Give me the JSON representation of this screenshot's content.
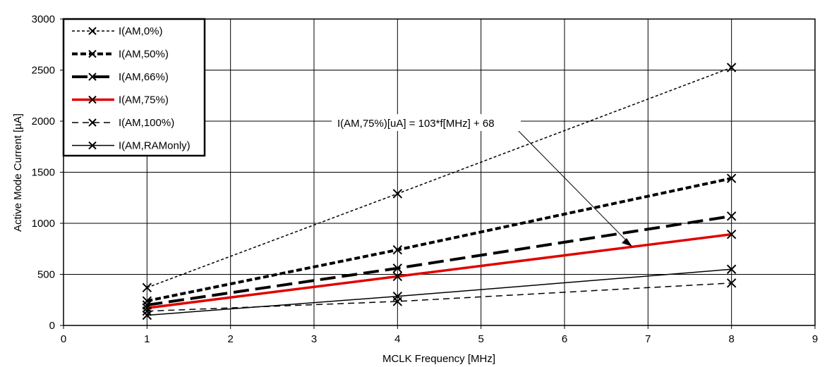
{
  "chart_data": {
    "type": "line",
    "title": "",
    "xlabel": "MCLK Frequency [MHz]",
    "ylabel": "Active Mode Current [µA]",
    "xlim": [
      0,
      9
    ],
    "ylim": [
      0,
      3000
    ],
    "xticks": [
      "0",
      "1",
      "2",
      "3",
      "4",
      "5",
      "6",
      "7",
      "8",
      "9"
    ],
    "yticks": [
      "0",
      "500",
      "1000",
      "1500",
      "2000",
      "2500",
      "3000"
    ],
    "grid": true,
    "legend_position": "top-left",
    "series": [
      {
        "name": "I(AM,0%)",
        "x": [
          1,
          4,
          8
        ],
        "y": [
          370,
          1290,
          2525
        ],
        "color": "#000000",
        "style": "short-dash-thin"
      },
      {
        "name": "I(AM,50%)",
        "x": [
          1,
          4,
          8
        ],
        "y": [
          240,
          740,
          1440
        ],
        "color": "#000000",
        "style": "short-dash-thick"
      },
      {
        "name": "I(AM,66%)",
        "x": [
          1,
          4,
          8
        ],
        "y": [
          200,
          560,
          1070
        ],
        "color": "#000000",
        "style": "long-dash-thick"
      },
      {
        "name": "I(AM,75%)",
        "x": [
          1,
          4,
          8
        ],
        "y": [
          171,
          480,
          892
        ],
        "color": "#e00000",
        "style": "solid-thick"
      },
      {
        "name": "I(AM,100%)",
        "x": [
          1,
          4,
          8
        ],
        "y": [
          140,
          235,
          415
        ],
        "color": "#000000",
        "style": "dash-thin"
      },
      {
        "name": "I(AM,RAMonly)",
        "x": [
          1,
          4,
          8
        ],
        "y": [
          100,
          285,
          550
        ],
        "color": "#000000",
        "style": "solid-thin"
      }
    ],
    "annotations": [
      {
        "text": "I(AM,75%)[uA] = 103*f[MHz] + 68",
        "points_to": {
          "x": 6.8,
          "y": 800
        }
      }
    ]
  }
}
